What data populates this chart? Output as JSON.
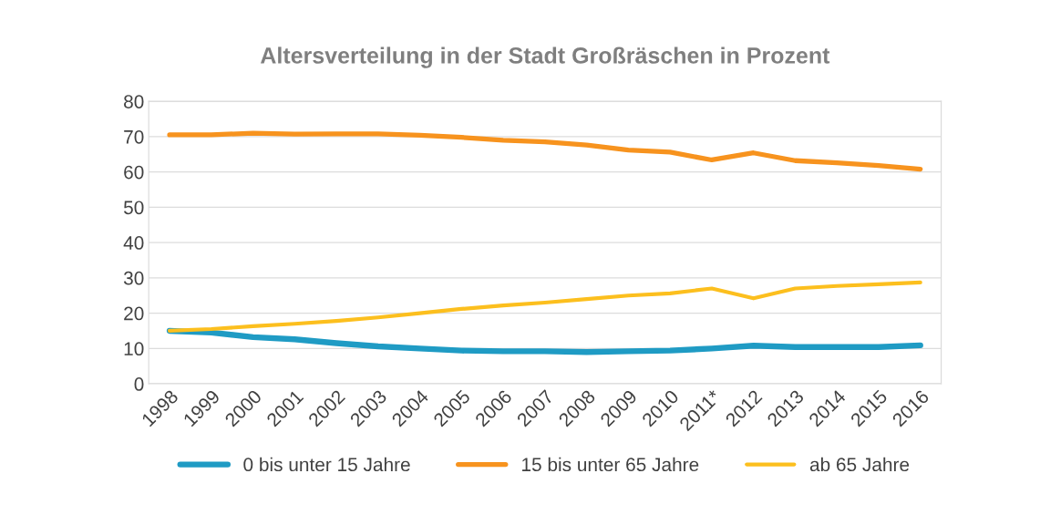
{
  "chart_data": {
    "type": "line",
    "title": "Altersverteilung in der Stadt Großräschen in Prozent",
    "categories": [
      "1998",
      "1999",
      "2000",
      "2001",
      "2002",
      "2003",
      "2004",
      "2005",
      "2006",
      "2007",
      "2008",
      "2009",
      "2010",
      "2011*",
      "2012",
      "2013",
      "2014",
      "2015",
      "2016"
    ],
    "series": [
      {
        "name": "0 bis unter 15 Jahre",
        "color": "#1f9bc4",
        "values": [
          15,
          14.5,
          13.2,
          12.6,
          11.5,
          10.6,
          10,
          9.4,
          9.2,
          9.2,
          9,
          9.2,
          9.4,
          10,
          10.8,
          10.4,
          10.4,
          10.4,
          10.9
        ]
      },
      {
        "name": "15 bis unter 65 Jahre",
        "color": "#f7931e",
        "values": [
          70.5,
          70.5,
          71,
          70.7,
          70.8,
          70.8,
          70.4,
          69.8,
          69,
          68.5,
          67.6,
          66.2,
          65.6,
          63.4,
          65.4,
          63.2,
          62.6,
          61.8,
          60.8
        ]
      },
      {
        "name": "ab 65 Jahre",
        "color": "#fcbf1e",
        "values": [
          15,
          15.5,
          16.3,
          17,
          17.8,
          18.8,
          20,
          21.2,
          22.2,
          23,
          24,
          25,
          25.6,
          27,
          24.2,
          27,
          27.7,
          28.2,
          28.7
        ]
      }
    ],
    "ylim": [
      0,
      80
    ],
    "yticks": [
      0,
      10,
      20,
      30,
      40,
      50,
      60,
      70,
      80
    ],
    "grid": "y",
    "legend": "bottom",
    "marker": "none",
    "line_style": "solid"
  }
}
